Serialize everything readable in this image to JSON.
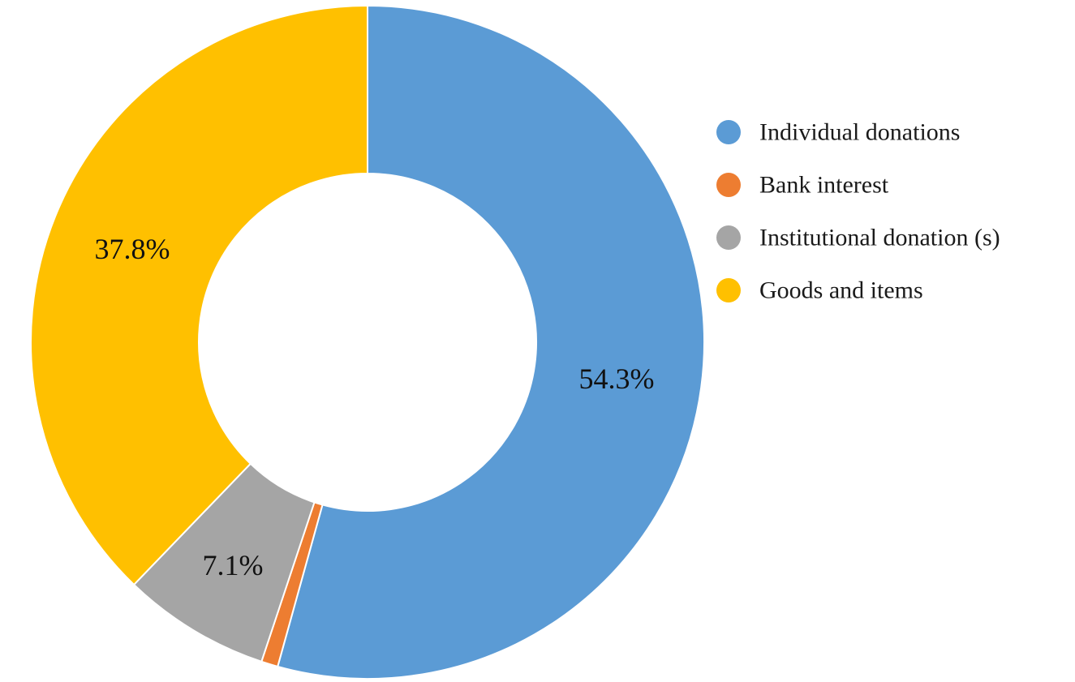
{
  "chart_data": {
    "type": "pie",
    "donut": true,
    "start": "12 o'clock",
    "direction": "clockwise",
    "legend_position": "right",
    "series": [
      {
        "name": "Individual donations",
        "value": 54.3,
        "color": "#5b9bd5",
        "label": "54.3%"
      },
      {
        "name": "Bank interest",
        "value": 0.8,
        "color": "#ed7d31",
        "label": ""
      },
      {
        "name": "Institutional donation (s)",
        "value": 7.1,
        "color": "#a5a5a5",
        "label": "7.1%"
      },
      {
        "name": "Goods and items",
        "value": 37.8,
        "color": "#ffc000",
        "label": "37.8%"
      }
    ]
  }
}
